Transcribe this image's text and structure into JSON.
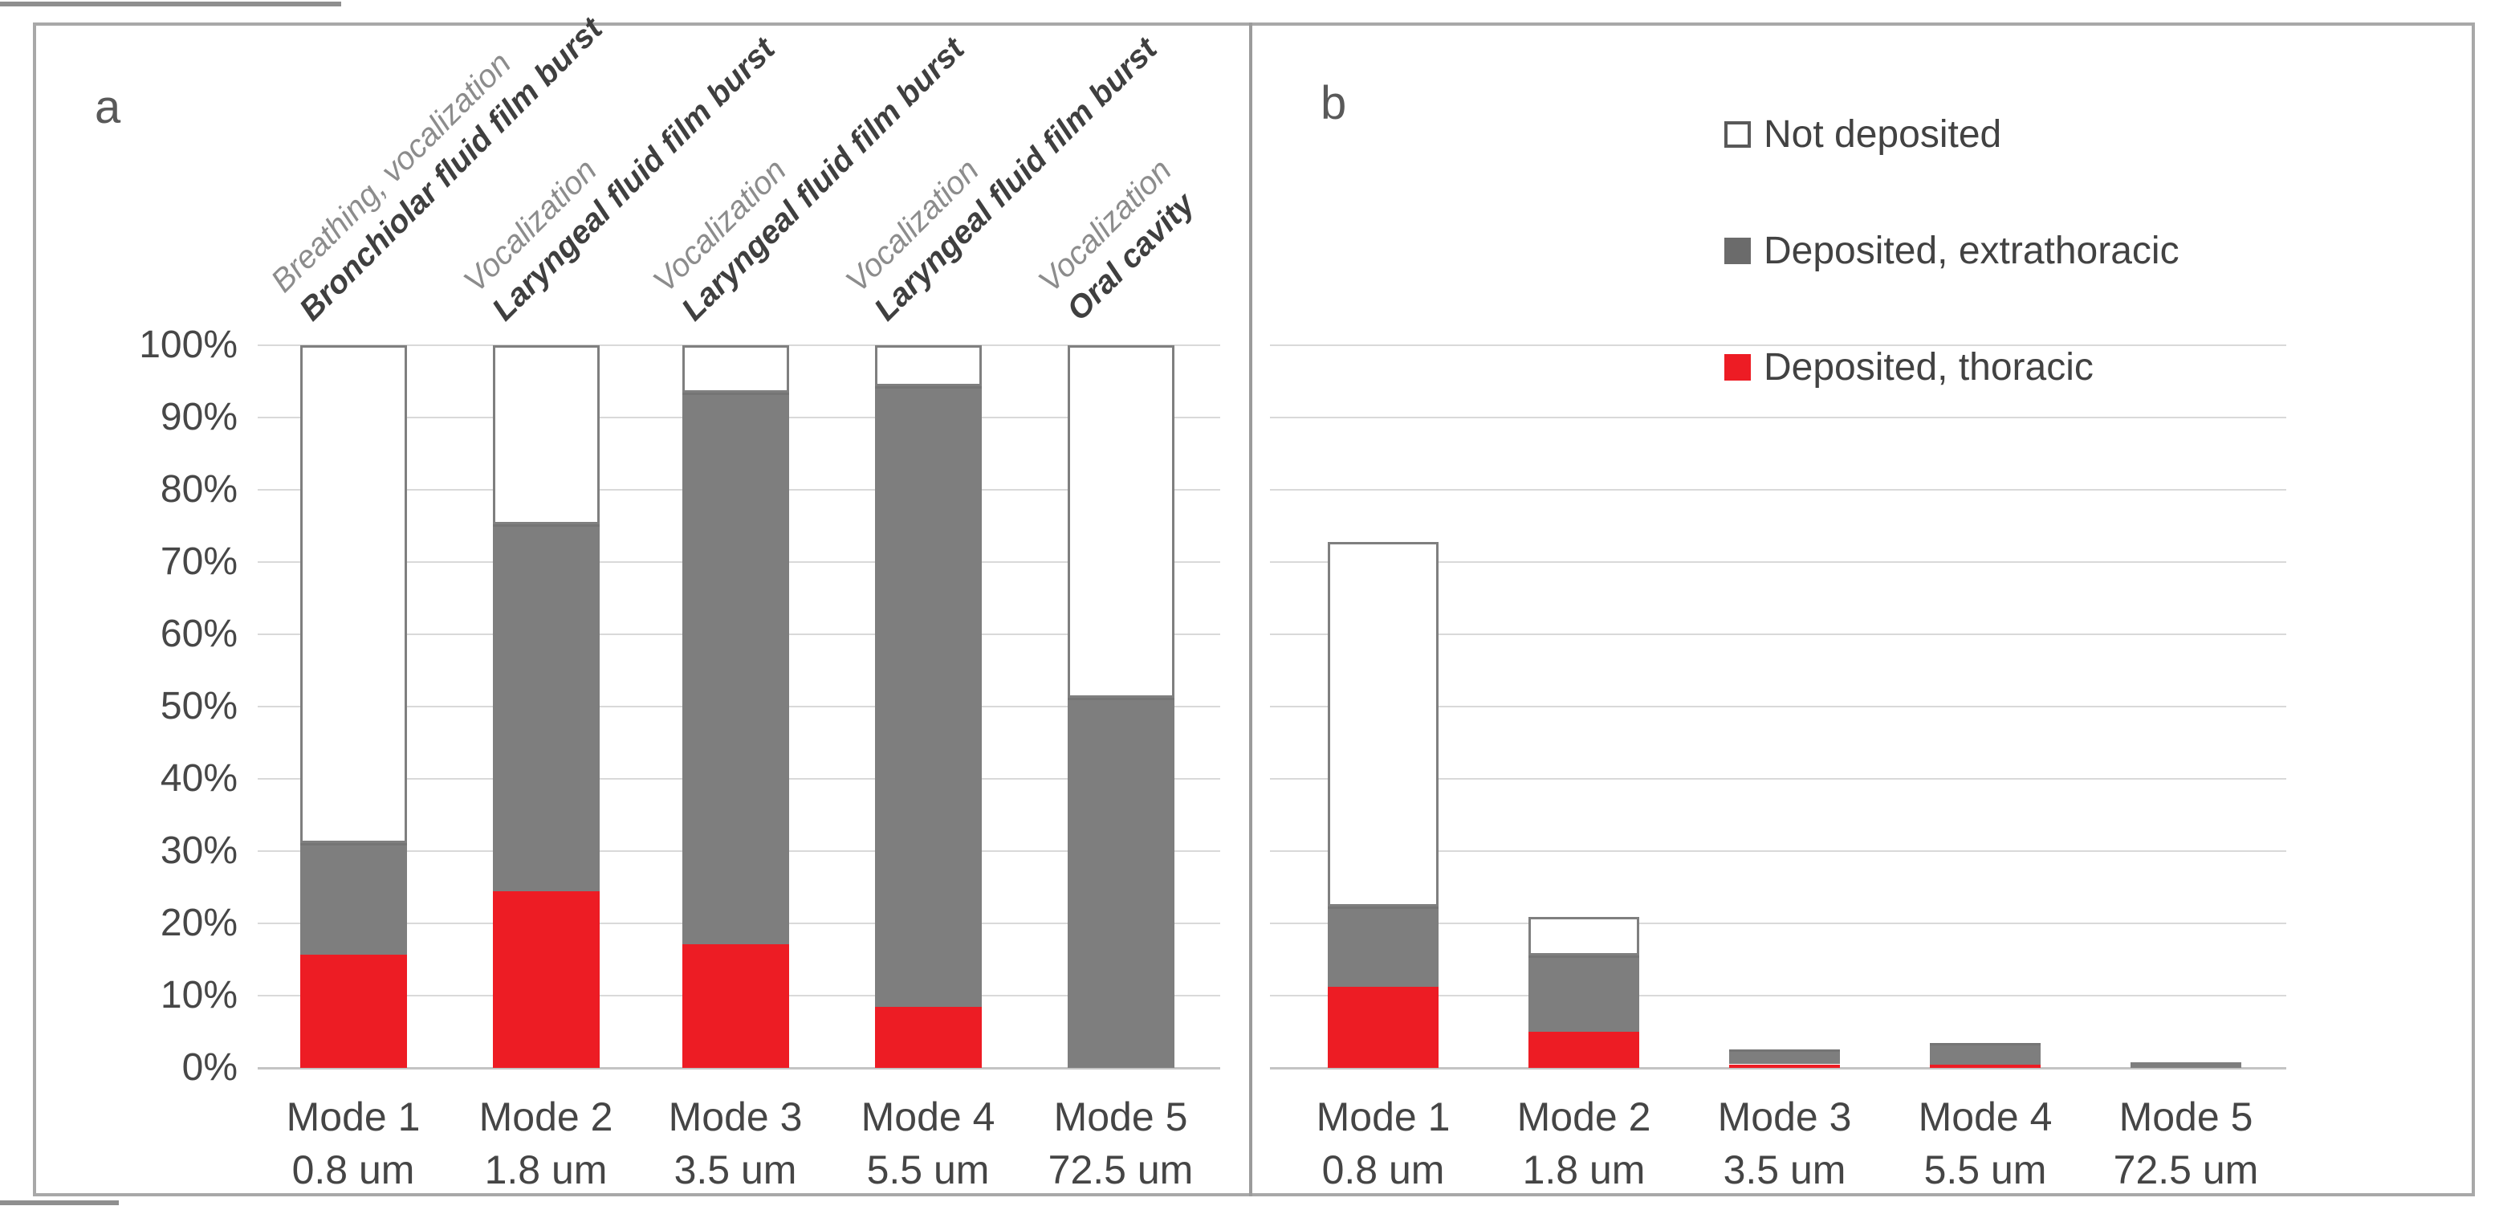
{
  "page": {
    "panel_a_label": "a",
    "panel_b_label": "b"
  },
  "colors": {
    "thoracic_red": "#ed1c24",
    "extrathoracic_gray": "#7e7e7e",
    "legend_gray": "#6b6b6b",
    "not_deposited_white": "#ffffff",
    "white_outline": "#7f7f7f",
    "gridline": "#d9d9d9",
    "frame": "#a8a8a8",
    "text": "#474747"
  },
  "legend": {
    "items": [
      {
        "label": "Not deposited",
        "swatch": "white"
      },
      {
        "label": "Deposited, extrathoracic",
        "swatch": "gray"
      },
      {
        "label": "Deposited, thoracic",
        "swatch": "red"
      }
    ]
  },
  "chart_data": [
    {
      "id": "a",
      "type": "bar",
      "stacked": true,
      "ylim": [
        0,
        100
      ],
      "grid": true,
      "legend_position": "none",
      "y_tick_labels": [
        "0%",
        "10%",
        "20%",
        "30%",
        "40%",
        "50%",
        "60%",
        "70%",
        "80%",
        "90%",
        "100%"
      ],
      "categories": [
        "Mode 1",
        "Mode 2",
        "Mode 3",
        "Mode 4",
        "Mode 5"
      ],
      "category_sublabels": [
        "0.8 um",
        "1.8 um",
        "3.5 um",
        "5.5 um",
        "72.5 um"
      ],
      "rotated_labels": [
        {
          "line1": "Breathing, vocalization",
          "line2": "Bronchiolar fluid film burst"
        },
        {
          "line1": "Vocalization",
          "line2": "Laryngeal fluid film burst"
        },
        {
          "line1": "Vocalization",
          "line2": "Laryngeal fluid film burst"
        },
        {
          "line1": "Vocalization",
          "line2": "Laryngeal fluid film burst"
        },
        {
          "line1": "Vocalization",
          "line2": "Oral cavity"
        }
      ],
      "series": [
        {
          "name": "Deposited, thoracic",
          "color": "red",
          "values": [
            15.7,
            24.4,
            17.1,
            8.4,
            0
          ]
        },
        {
          "name": "Deposited, extrathoracic",
          "color": "gray",
          "values": [
            15.4,
            50.8,
            76.3,
            85.9,
            51.2
          ]
        },
        {
          "name": "Not deposited",
          "color": "white",
          "values": [
            68.9,
            24.8,
            6.6,
            5.7,
            48.8
          ]
        }
      ]
    },
    {
      "id": "b",
      "type": "bar",
      "stacked": true,
      "ylim": [
        0,
        100
      ],
      "grid": true,
      "legend_position": "top-center",
      "y_tick_labels": [],
      "categories": [
        "Mode 1",
        "Mode 2",
        "Mode 3",
        "Mode 4",
        "Mode 5"
      ],
      "category_sublabels": [
        "0.8 um",
        "1.8 um",
        "3.5 um",
        "5.5 um",
        "72.5 um"
      ],
      "rotated_labels": [],
      "series": [
        {
          "name": "Deposited, thoracic",
          "color": "red",
          "values": [
            11.2,
            5.0,
            0.5,
            0.4,
            0
          ]
        },
        {
          "name": "Deposited, extrathoracic",
          "color": "gray",
          "values": [
            11.1,
            10.6,
            2.1,
            3.0,
            0.8
          ]
        },
        {
          "name": "Not deposited",
          "color": "white",
          "values": [
            50.5,
            5.3,
            0,
            0,
            0
          ]
        }
      ]
    }
  ]
}
